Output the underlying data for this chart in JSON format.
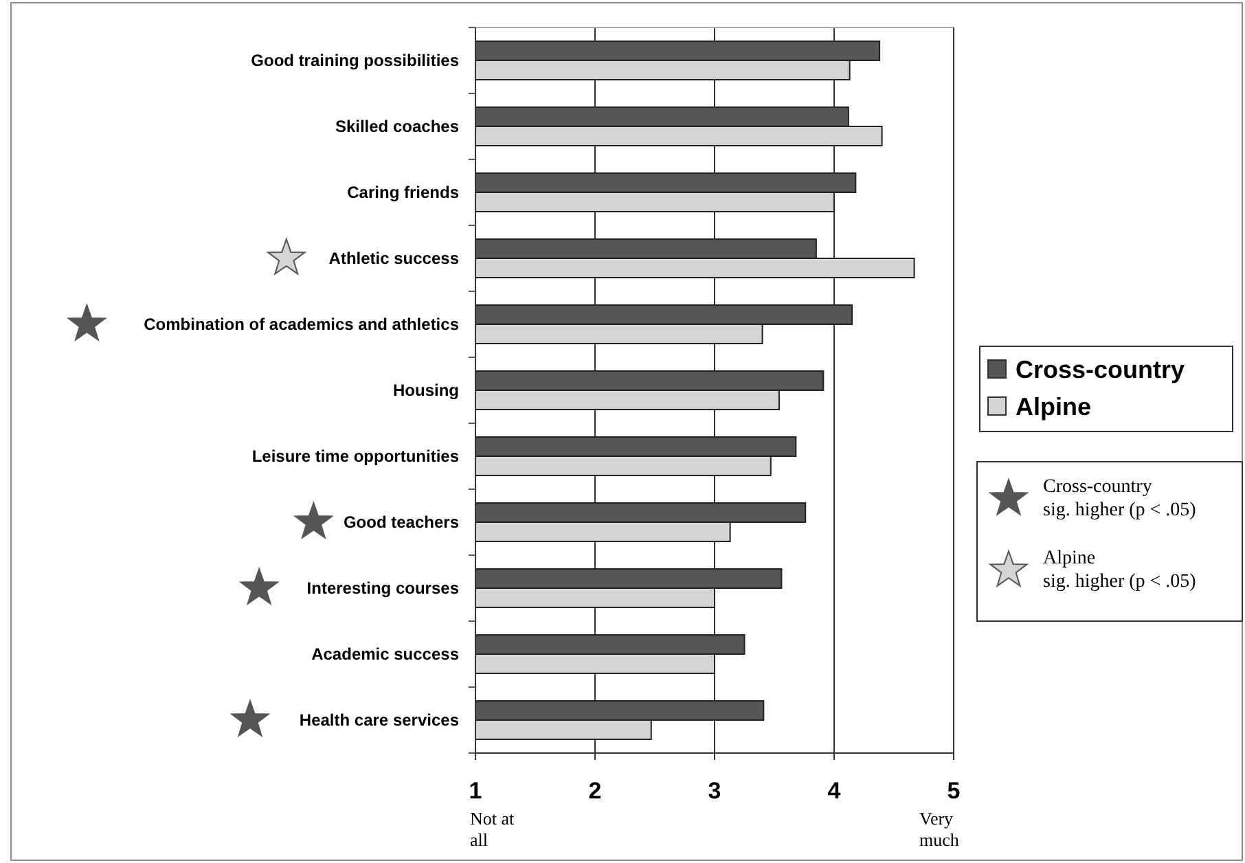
{
  "chart_data": {
    "type": "bar",
    "orientation": "horizontal",
    "categories": [
      "Good training possibilities",
      "Skilled coaches",
      "Caring friends",
      "Athletic success",
      "Combination of academics and athletics",
      "Housing",
      "Leisure time opportunities",
      "Good teachers",
      "Interesting courses",
      "Academic success",
      "Health care services"
    ],
    "series": [
      {
        "name": "Cross-country",
        "color": "#555555",
        "values": [
          4.38,
          4.12,
          4.18,
          3.85,
          4.15,
          3.91,
          3.68,
          3.76,
          3.56,
          3.25,
          3.41
        ]
      },
      {
        "name": "Alpine",
        "color": "#d4d4d4",
        "values": [
          4.13,
          4.4,
          4.0,
          4.67,
          3.4,
          3.54,
          3.47,
          3.13,
          3.0,
          3.0,
          2.47
        ]
      }
    ],
    "xlim": [
      1,
      5
    ],
    "xticks": [
      1,
      2,
      3,
      4,
      5
    ],
    "grid": "x",
    "legend": "right",
    "annotations": [
      "Not at\nall",
      "Very\nmuch",
      "Cross-country\nsig. higher (p < .05)",
      "Alpine\nsig. higher (p < .05)"
    ]
  }
}
